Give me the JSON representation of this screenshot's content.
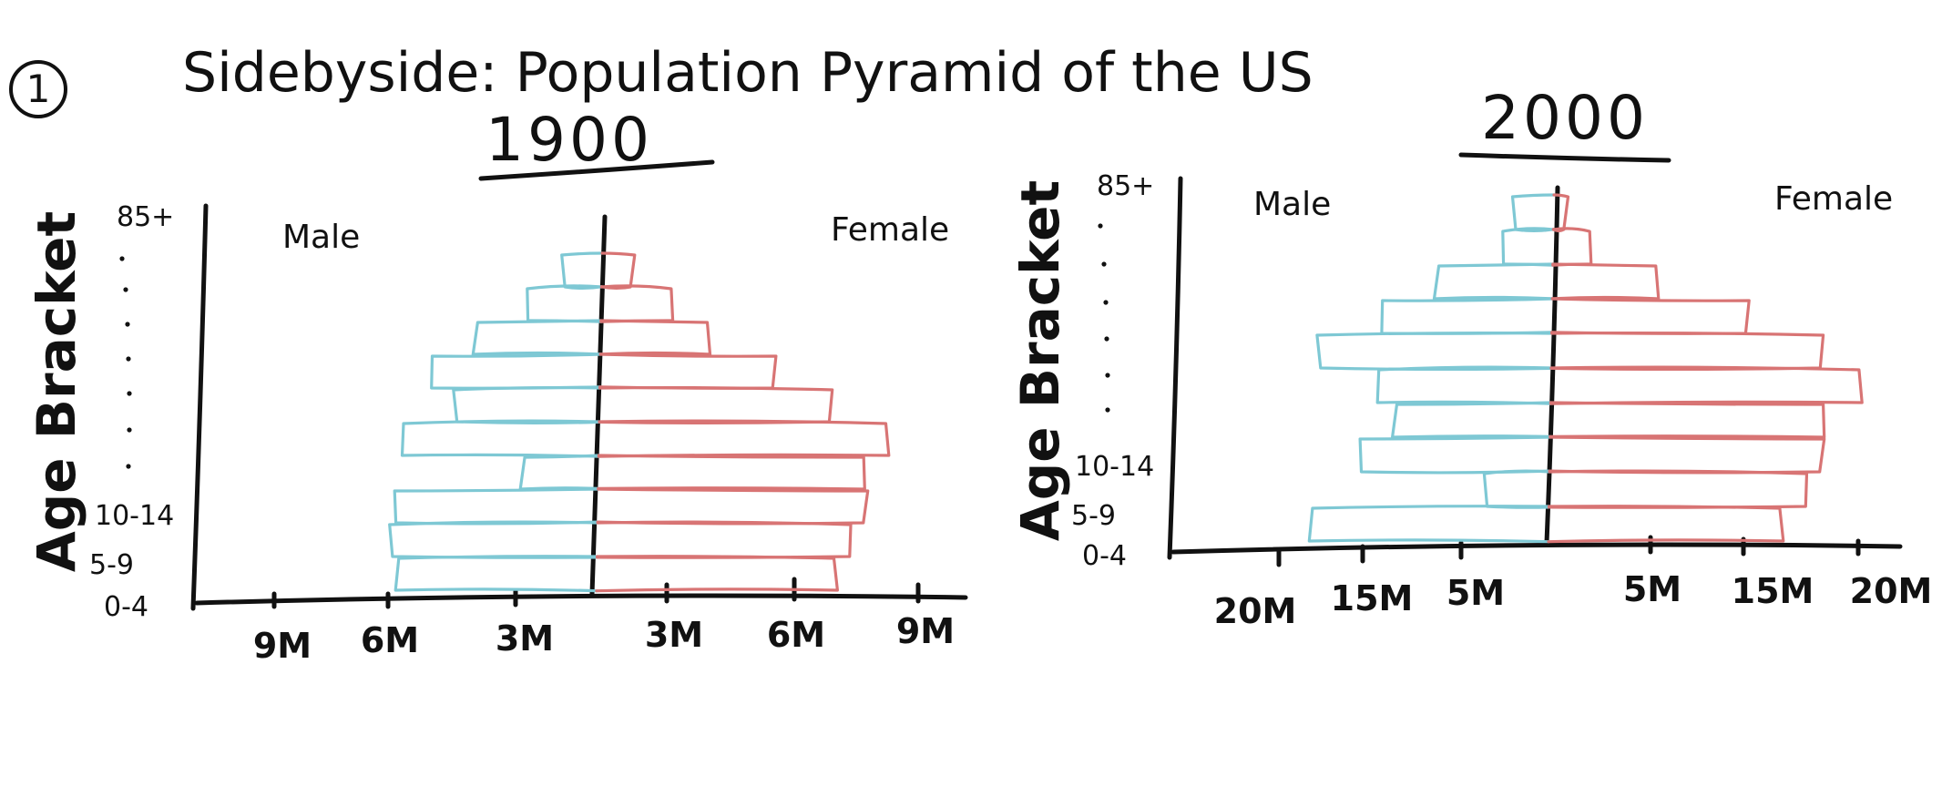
{
  "page": {
    "number": "1",
    "title": "Sidebyside: Population Pyramid of the US"
  },
  "colors": {
    "male": "#7ec8d4",
    "female": "#d87474",
    "ink": "#111111"
  },
  "chart_data": [
    {
      "type": "bar",
      "title": "1900",
      "ylabel": "Age Bracket",
      "age_labels": [
        "85+",
        "10-14",
        "5-9",
        "0-4"
      ],
      "x_tick_labels_left": [
        "9M",
        "6M",
        "3M"
      ],
      "x_tick_labels_right": [
        "3M",
        "6M",
        "9M"
      ],
      "xlim": [
        -9,
        9
      ],
      "series": [
        {
          "name": "Male",
          "color": "#7ec8d4",
          "values": [
            6.4,
            6.6,
            6.4,
            2.4,
            6.3,
            4.6,
            5.3,
            4.0,
            2.4,
            1.2
          ]
        },
        {
          "name": "Female",
          "color": "#d87474",
          "values": [
            7.6,
            8.1,
            8.5,
            8.4,
            9.2,
            7.4,
            5.5,
            3.4,
            2.3,
            1.0
          ]
        }
      ]
    },
    {
      "type": "bar",
      "title": "2000",
      "ylabel": "Age Bracket",
      "age_labels": [
        "85+",
        "10-14",
        "5-9",
        "0-4"
      ],
      "x_tick_labels_left": [
        "20M",
        "15M",
        "5M"
      ],
      "x_tick_labels_right": [
        "5M",
        "15M",
        "20M"
      ],
      "xlim": [
        -23,
        23
      ],
      "series": [
        {
          "name": "Male",
          "color": "#7ec8d4",
          "values": [
            18.5,
            5.0,
            14.5,
            12.0,
            13.5,
            18.0,
            13.0,
            9.0,
            4.0,
            3.0
          ]
        },
        {
          "name": "Female",
          "color": "#d87474",
          "values": [
            18.0,
            20.0,
            21.0,
            21.0,
            24.0,
            21.0,
            15.0,
            8.0,
            3.0,
            1.0
          ]
        }
      ]
    }
  ]
}
